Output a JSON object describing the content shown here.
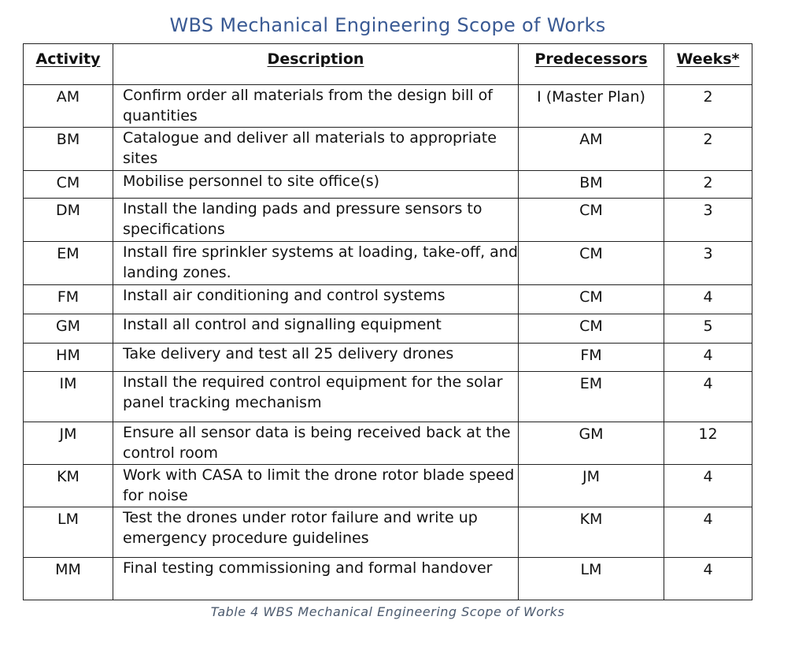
{
  "title": "WBS Mechanical Engineering Scope of Works",
  "headers": {
    "activity": "Activity",
    "description": "Description",
    "predecessors": "Predecessors",
    "weeks": "Weeks*"
  },
  "rows": [
    {
      "activity": "AM",
      "description": "Confirm order all materials from the design bill of quantities",
      "predecessors": "I (Master Plan)",
      "weeks": "2"
    },
    {
      "activity": "BM",
      "description": "Catalogue and deliver all materials to appropriate sites",
      "predecessors": "AM",
      "weeks": "2"
    },
    {
      "activity": "CM",
      "description": "Mobilise personnel to site office(s)",
      "predecessors": "BM",
      "weeks": "2"
    },
    {
      "activity": "DM",
      "description": "Install the landing pads and pressure sensors to specifications",
      "predecessors": "CM",
      "weeks": "3"
    },
    {
      "activity": "EM",
      "description": "Install fire sprinkler systems at loading, take-off, and landing zones.",
      "predecessors": "CM",
      "weeks": "3"
    },
    {
      "activity": "FM",
      "description": "Install air conditioning and control systems",
      "predecessors": "CM",
      "weeks": "4"
    },
    {
      "activity": "GM",
      "description": "Install all control and signalling equipment",
      "predecessors": "CM",
      "weeks": "5"
    },
    {
      "activity": "HM",
      "description": "Take delivery and test all 25 delivery drones",
      "predecessors": "FM",
      "weeks": "4"
    },
    {
      "activity": "IM",
      "description": "Install the required control equipment for the solar panel tracking mechanism",
      "predecessors": "EM",
      "weeks": "4"
    },
    {
      "activity": "JM",
      "description": "Ensure all sensor data is being received back at the control room",
      "predecessors": "GM",
      "weeks": "12"
    },
    {
      "activity": "KM",
      "description": "Work with CASA to limit the drone rotor blade speed for noise",
      "predecessors": "JM",
      "weeks": "4"
    },
    {
      "activity": "LM",
      "description": "Test the drones under rotor failure and write up emergency procedure guidelines",
      "predecessors": "KM",
      "weeks": "4"
    },
    {
      "activity": "MM",
      "description": "Final testing commissioning and formal handover",
      "predecessors": "LM",
      "weeks": "4"
    }
  ],
  "caption": "Table 4 WBS Mechanical Engineering Scope of Works"
}
